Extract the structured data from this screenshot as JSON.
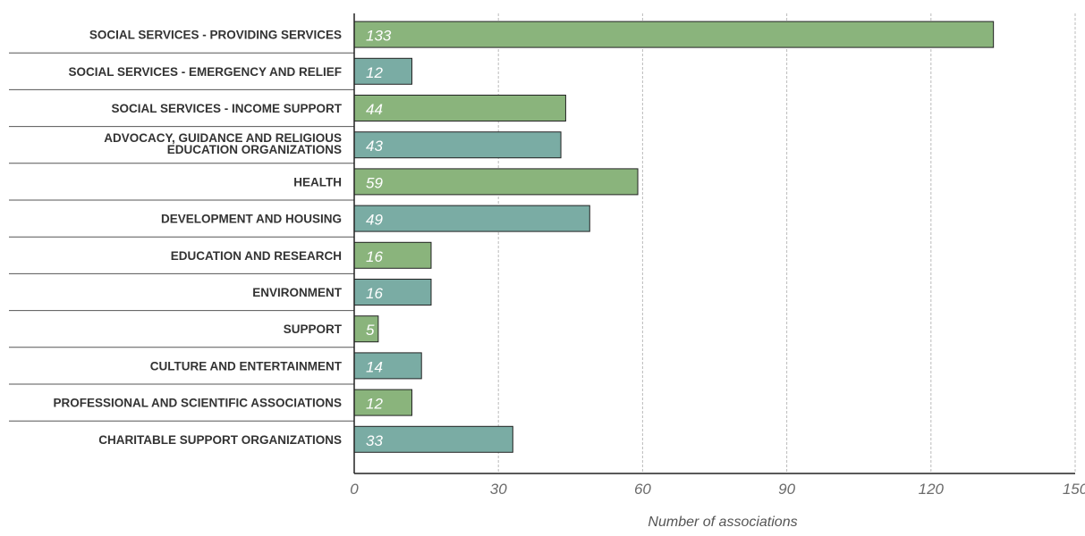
{
  "chart_data": {
    "type": "bar",
    "orientation": "horizontal",
    "title": "",
    "xlabel": "Number of associations",
    "ylabel": "",
    "xlim": [
      0,
      150
    ],
    "xticks": [
      0,
      30,
      60,
      90,
      120,
      150
    ],
    "grid": {
      "vertical": true,
      "style": "dashed"
    },
    "legend": "none",
    "colors": {
      "green": "#8ab47c",
      "teal": "#7aaca4",
      "border": "#222222",
      "gridline": "#bbbbbb",
      "separator": "#555555"
    },
    "categories": [
      "SOCIAL SERVICES - PROVIDING SERVICES",
      "SOCIAL SERVICES - EMERGENCY AND RELIEF",
      "SOCIAL SERVICES - INCOME SUPPORT",
      "ADVOCACY, GUIDANCE AND RELIGIOUS EDUCATION ORGANIZATIONS",
      "HEALTH",
      "DEVELOPMENT AND HOUSING",
      "EDUCATION AND RESEARCH",
      "ENVIRONMENT",
      "SUPPORT",
      "CULTURE AND ENTERTAINMENT",
      "PROFESSIONAL AND SCIENTIFIC ASSOCIATIONS",
      "CHARITABLE SUPPORT ORGANIZATIONS"
    ],
    "category_label_lines": [
      [
        "SOCIAL SERVICES - PROVIDING SERVICES"
      ],
      [
        "SOCIAL SERVICES - EMERGENCY AND RELIEF"
      ],
      [
        "SOCIAL SERVICES - INCOME SUPPORT"
      ],
      [
        "ADVOCACY, GUIDANCE AND RELIGIOUS",
        "EDUCATION ORGANIZATIONS"
      ],
      [
        "HEALTH"
      ],
      [
        "DEVELOPMENT AND HOUSING"
      ],
      [
        "EDUCATION AND RESEARCH"
      ],
      [
        "ENVIRONMENT"
      ],
      [
        "SUPPORT"
      ],
      [
        "CULTURE AND ENTERTAINMENT"
      ],
      [
        "PROFESSIONAL AND SCIENTIFIC ASSOCIATIONS"
      ],
      [
        "CHARITABLE SUPPORT ORGANIZATIONS"
      ]
    ],
    "values": [
      133,
      12,
      44,
      43,
      59,
      49,
      16,
      16,
      5,
      14,
      12,
      33
    ],
    "bar_colors": [
      "green",
      "teal",
      "green",
      "teal",
      "green",
      "teal",
      "green",
      "teal",
      "green",
      "teal",
      "green",
      "teal"
    ]
  }
}
